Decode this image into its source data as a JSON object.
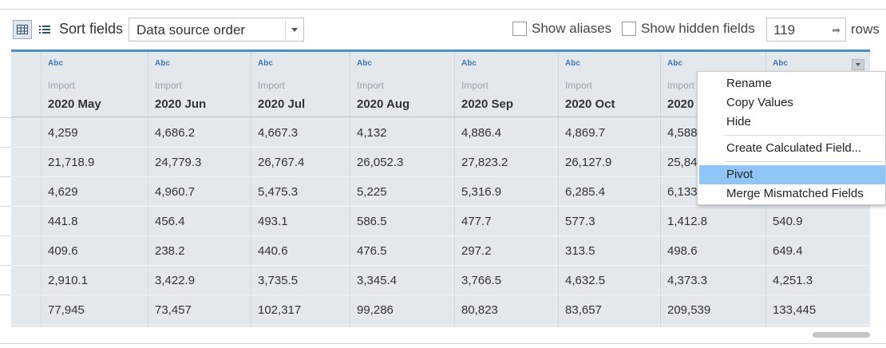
{
  "toolbar": {
    "sort_label": "Sort fields",
    "sort_value": "Data source order",
    "show_aliases_label": "Show aliases",
    "show_aliases_checked": false,
    "show_hidden_label": "Show hidden fields",
    "show_hidden_checked": false,
    "rows_value": "119",
    "rows_label": "rows"
  },
  "table": {
    "columns": [
      {
        "type": "Abc",
        "source": "Import",
        "name": "2020 May"
      },
      {
        "type": "Abc",
        "source": "Import",
        "name": "2020 Jun"
      },
      {
        "type": "Abc",
        "source": "Import",
        "name": "2020 Jul"
      },
      {
        "type": "Abc",
        "source": "Import",
        "name": "2020 Aug"
      },
      {
        "type": "Abc",
        "source": "Import",
        "name": "2020 Sep"
      },
      {
        "type": "Abc",
        "source": "Import",
        "name": "2020 Oct"
      },
      {
        "type": "Abc",
        "source": "Import",
        "name": "2020"
      },
      {
        "type": "Abc",
        "source": "",
        "name": ""
      }
    ],
    "rows": [
      [
        "4,259",
        "4,686.2",
        "4,667.3",
        "4,132",
        "4,886.4",
        "4,869.7",
        "4,588",
        ""
      ],
      [
        "21,718.9",
        "24,779.3",
        "26,767.4",
        "26,052.3",
        "27,823.2",
        "26,127.9",
        "25,84",
        ""
      ],
      [
        "4,629",
        "4,960.7",
        "5,475.3",
        "5,225",
        "5,316.9",
        "6,285.4",
        "6,133",
        ""
      ],
      [
        "441.8",
        "456.4",
        "493.1",
        "586.5",
        "477.7",
        "577.3",
        "1,412.8",
        "540.9"
      ],
      [
        "409.6",
        "238.2",
        "440.6",
        "476.5",
        "297.2",
        "313.5",
        "498.6",
        "649.4"
      ],
      [
        "2,910.1",
        "3,422.9",
        "3,735.5",
        "3,345.4",
        "3,766.5",
        "4,632.5",
        "4,373.3",
        "4,251.3"
      ],
      [
        "77,945",
        "73,457",
        "102,317",
        "99,286",
        "80,823",
        "83,657",
        "209,539",
        "133,445"
      ]
    ]
  },
  "context_menu": {
    "items": [
      {
        "label": "Rename"
      },
      {
        "label": "Copy Values"
      },
      {
        "label": "Hide"
      },
      {
        "label": "Create Calculated Field..."
      },
      {
        "label": "Pivot",
        "highlighted": true
      },
      {
        "label": "Merge Mismatched Fields"
      }
    ]
  },
  "colors": {
    "accent": "#4e8fc7",
    "grid_bg": "#e3e8ed",
    "menu_highlight": "#90c6f7",
    "type_label": "#3f78b5"
  },
  "icons": {
    "grid_view": "grid-view-icon",
    "list_view": "list-view-icon",
    "dropdown": "chevron-down-icon",
    "spinner": "arrow-right-icon"
  }
}
